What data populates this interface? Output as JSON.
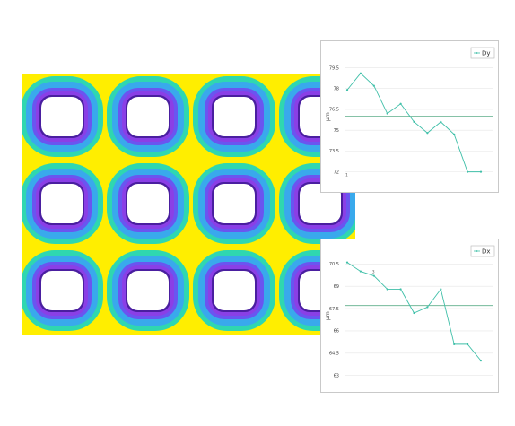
{
  "colors": {
    "series": "#3fbfa8",
    "reference": "#5fae8a",
    "grid": "#e6e6e6",
    "heat_outer": "#ffee00",
    "heat_mid": "#2fd7b0",
    "heat_cyan": "#39a9ec",
    "heat_inner": "#8a3fe6",
    "heat_rim": "#4a1fa0"
  },
  "heatmap": {
    "type": "heatmap",
    "grid": {
      "rows": 3,
      "cols": 4
    },
    "color_scale": [
      "#ffee00",
      "#2fd7b0",
      "#39a9ec",
      "#8a3fe6",
      "#4a1fa0"
    ]
  },
  "chart_data": [
    {
      "id": "dy",
      "type": "line",
      "ylabel": "µm",
      "yticks": [
        "79.5",
        "78",
        "76.5",
        "75",
        "73.5",
        "72"
      ],
      "ytick_values": [
        79.5,
        78,
        76.5,
        75,
        73.5,
        72
      ],
      "ylim": [
        71.2,
        80.5
      ],
      "x": [
        1,
        2,
        3,
        4,
        5,
        6,
        7,
        8,
        9,
        10,
        11
      ],
      "series": [
        {
          "name": "Dy",
          "values": [
            77.9,
            79.1,
            78.2,
            76.2,
            76.9,
            75.6,
            74.8,
            75.6,
            74.7,
            72.0,
            72.0
          ]
        }
      ],
      "reference_line": 76.0,
      "grid": true,
      "legend": "top-right",
      "point_labels": [
        "1"
      ]
    },
    {
      "id": "dx",
      "type": "line",
      "ylabel": "µm",
      "yticks": [
        "70.5",
        "69",
        "67.5",
        "66",
        "64.5",
        "63"
      ],
      "ytick_values": [
        70.5,
        69,
        67.5,
        66,
        64.5,
        63
      ],
      "ylim": [
        62.5,
        71.3
      ],
      "x": [
        1,
        2,
        3,
        4,
        5,
        6,
        7,
        8,
        9,
        10,
        11
      ],
      "series": [
        {
          "name": "Dx",
          "values": [
            70.6,
            70.0,
            69.7,
            68.8,
            68.8,
            67.2,
            67.6,
            68.8,
            65.1,
            65.1,
            64.0
          ]
        }
      ],
      "reference_line": 67.7,
      "grid": true,
      "legend": "top-right",
      "point_labels": [
        "3"
      ]
    }
  ]
}
